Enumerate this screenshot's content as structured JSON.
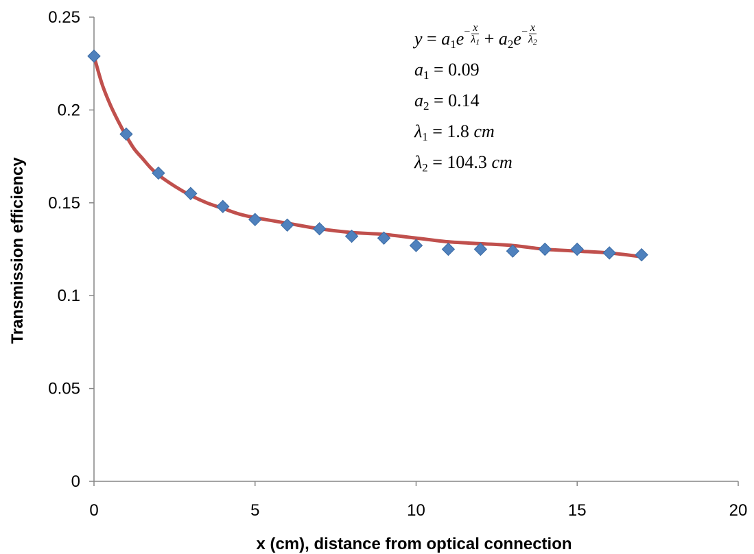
{
  "chart_data": {
    "type": "scatter",
    "title": "",
    "xlabel": "x (cm), distance from optical connection",
    "ylabel": "Transmission efficiency",
    "xlim": [
      0,
      20
    ],
    "ylim": [
      0,
      0.25
    ],
    "xticks": [
      0,
      5,
      10,
      15,
      20
    ],
    "yticks": [
      0,
      0.05,
      0.1,
      0.15,
      0.2,
      0.25
    ],
    "xtick_labels": [
      "0",
      "5",
      "10",
      "15",
      "20"
    ],
    "ytick_labels": [
      "0",
      "0.05",
      "0.1",
      "0.15",
      "0.2",
      "0.25"
    ],
    "grid": false,
    "series": [
      {
        "kind": "points",
        "marker": "diamond",
        "color": "#4F81BD",
        "x": [
          0,
          1,
          2,
          3,
          4,
          5,
          6,
          7,
          8,
          9,
          10,
          11,
          12,
          13,
          14,
          15,
          16,
          17
        ],
        "y": [
          0.229,
          0.187,
          0.166,
          0.155,
          0.148,
          0.141,
          0.138,
          0.136,
          0.132,
          0.131,
          0.127,
          0.125,
          0.125,
          0.124,
          0.125,
          0.125,
          0.123,
          0.122
        ]
      },
      {
        "kind": "fit-line",
        "color": "#C0504D",
        "x": [
          0,
          0.25,
          0.5,
          0.75,
          1,
          1.25,
          1.5,
          1.75,
          2,
          2.5,
          3,
          3.5,
          4,
          4.5,
          5,
          6,
          7,
          8,
          9,
          10,
          11,
          12,
          13,
          14,
          15,
          16,
          17
        ],
        "y": [
          0.229,
          0.214,
          0.203,
          0.194,
          0.186,
          0.179,
          0.174,
          0.169,
          0.165,
          0.159,
          0.154,
          0.15,
          0.147,
          0.144,
          0.142,
          0.139,
          0.136,
          0.134,
          0.133,
          0.131,
          0.129,
          0.128,
          0.127,
          0.125,
          0.124,
          0.123,
          0.121
        ]
      }
    ],
    "annotation": {
      "line1": {
        "y": "y",
        "eq": " = ",
        "a1": "a",
        "a1sub": "1",
        "e1": "e",
        "minus": "−",
        "x1": "x",
        "lam1": "λ",
        "lam1sub": "1",
        "plus": " + ",
        "a2": "a",
        "a2sub": "2",
        "e2": "e",
        "x2": "x",
        "lam2": "λ",
        "lam2sub": "2"
      },
      "lines": [
        {
          "sym": "a",
          "sub": "1",
          "rest": " = 0.09",
          "unit": ""
        },
        {
          "sym": "a",
          "sub": "2",
          "rest": " = 0.14",
          "unit": ""
        },
        {
          "sym": "λ",
          "sub": "1",
          "rest": " = 1.8 ",
          "unit": "cm"
        },
        {
          "sym": "λ",
          "sub": "2",
          "rest": " = 104.3 ",
          "unit": "cm"
        }
      ]
    }
  }
}
